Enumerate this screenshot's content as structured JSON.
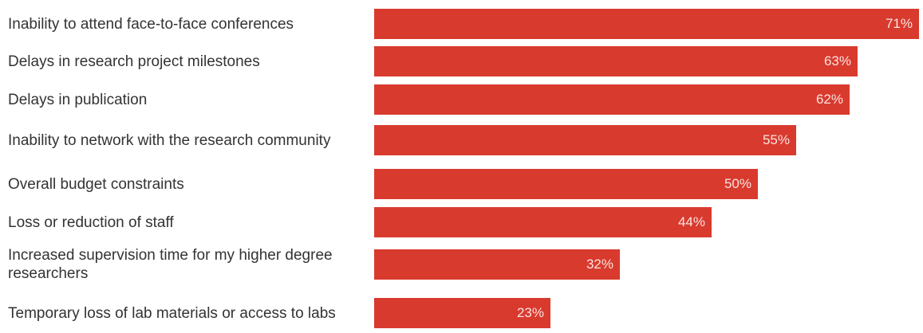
{
  "chart_data": {
    "type": "bar",
    "orientation": "horizontal",
    "categories": [
      "Inability to attend face-to-face conferences",
      "Delays in research project milestones",
      "Delays in publication",
      "Inability to network with the research community",
      "Overall budget constraints",
      "Loss or reduction of staff",
      "Increased supervision time for my higher degree researchers",
      "Temporary loss of lab materials or access to labs"
    ],
    "values": [
      71,
      63,
      62,
      55,
      50,
      44,
      32,
      23
    ],
    "value_labels": [
      "71%",
      "63%",
      "62%",
      "55%",
      "50%",
      "44%",
      "32%",
      "23%"
    ],
    "unit": "%",
    "title": "",
    "xlabel": "",
    "ylabel": "",
    "xlim": [
      0,
      71
    ],
    "grid": false,
    "legend": "none",
    "colors": {
      "bar": "#d93a2e",
      "label_text": "#333333",
      "value_text": "#fbe3e0"
    }
  }
}
